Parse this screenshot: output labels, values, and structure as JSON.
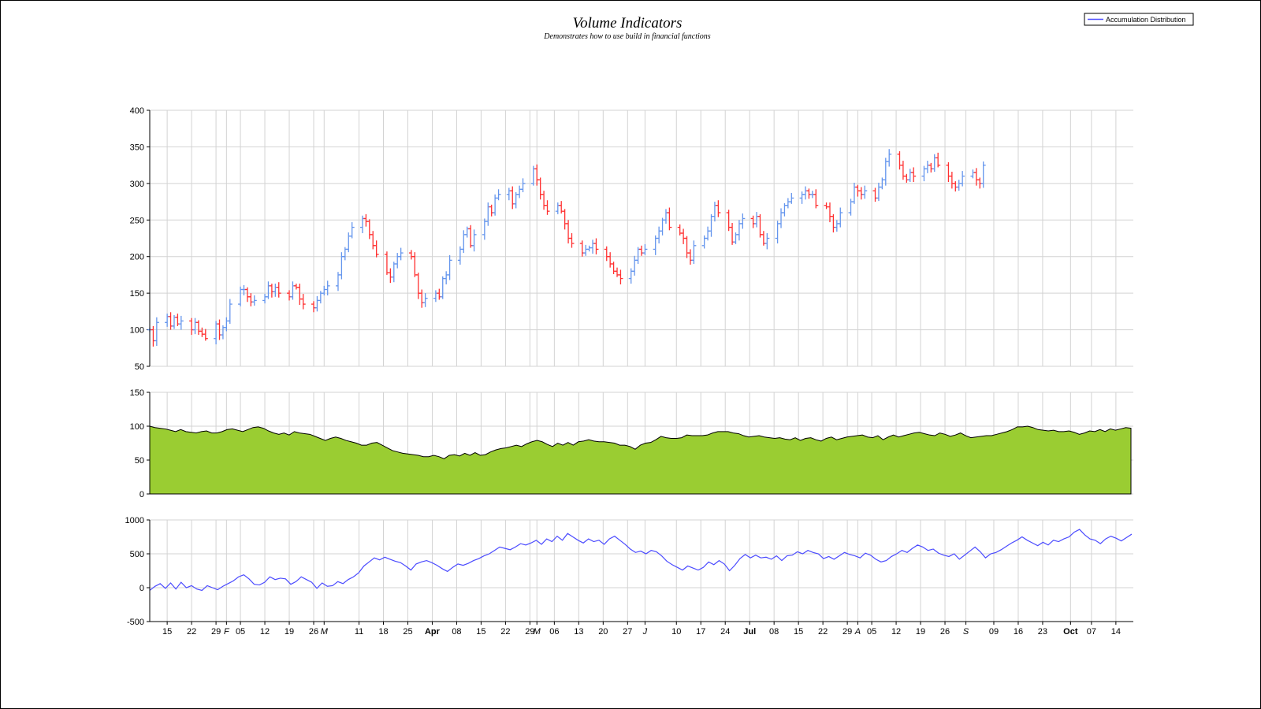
{
  "chart_title": "Volume Indicators",
  "chart_subtitle": "Demonstrates how to use build in financial functions",
  "legend": {
    "placement": "top-right",
    "entries": [
      "Accumulation Distribution"
    ]
  },
  "colors": {
    "up_bar": "#6495ED",
    "down_bar": "#FF3030",
    "volume_fill": "#9ACD32",
    "volume_line": "#000000",
    "accum_line": "#4B4BFF",
    "grid": "#D3D3D3",
    "border": "#000000"
  },
  "chart_data": [
    {
      "type": "line",
      "name": "price-panel",
      "chart_style": "OHLC stock bars",
      "ylim": [
        50,
        400
      ],
      "yticks": [
        "50",
        "100",
        "150",
        "200",
        "250",
        "300",
        "350",
        "400"
      ],
      "close_series_start": "2001-01-10",
      "close_values": [
        100,
        85,
        110,
        118,
        105,
        117,
        108,
        112,
        100,
        110,
        98,
        94,
        88,
        108,
        93,
        103,
        112,
        135,
        155,
        155,
        145,
        138,
        140,
        145,
        160,
        152,
        158,
        150,
        145,
        160,
        158,
        142,
        135,
        130,
        140,
        150,
        155,
        160,
        175,
        200,
        210,
        228,
        240,
        252,
        248,
        230,
        215,
        203,
        178,
        172,
        190,
        200,
        205,
        200,
        175,
        150,
        137,
        143,
        150,
        145,
        170,
        175,
        195,
        210,
        230,
        238,
        215,
        230,
        248,
        268,
        260,
        280,
        285,
        290,
        272,
        285,
        292,
        300,
        320,
        305,
        285,
        270,
        262,
        270,
        262,
        245,
        225,
        218,
        205,
        210,
        212,
        218,
        210,
        200,
        190,
        180,
        175,
        170,
        180,
        195,
        210,
        205,
        210,
        225,
        235,
        250,
        260,
        240,
        232,
        225,
        205,
        195,
        215,
        225,
        235,
        255,
        270,
        260,
        240,
        220,
        230,
        245,
        252,
        245,
        255,
        230,
        218,
        225,
        245,
        260,
        270,
        275,
        280,
        285,
        290,
        285,
        285,
        270,
        268,
        255,
        240,
        245,
        260,
        275,
        295,
        290,
        285,
        290,
        280,
        295,
        305,
        330,
        340,
        325,
        310,
        305,
        315,
        310,
        320,
        325,
        320,
        335,
        325,
        310,
        300,
        295,
        300,
        310,
        315,
        305,
        300,
        325
      ]
    },
    {
      "type": "area",
      "name": "volume-panel",
      "ylim": [
        0,
        150
      ],
      "yticks": [
        "0",
        "50",
        "100",
        "150"
      ],
      "values": [
        100,
        98,
        97,
        96,
        94,
        92,
        95,
        92,
        91,
        90,
        92,
        93,
        90,
        90,
        92,
        95,
        96,
        94,
        92,
        95,
        98,
        99,
        97,
        93,
        90,
        88,
        90,
        87,
        92,
        90,
        89,
        88,
        85,
        82,
        79,
        82,
        84,
        82,
        79,
        77,
        75,
        72,
        72,
        75,
        76,
        72,
        68,
        64,
        62,
        60,
        59,
        58,
        57,
        55,
        55,
        57,
        55,
        52,
        57,
        58,
        56,
        60,
        57,
        61,
        57,
        58,
        62,
        65,
        67,
        68,
        70,
        72,
        70,
        74,
        77,
        79,
        77,
        73,
        70,
        75,
        72,
        76,
        72,
        77,
        78,
        80,
        78,
        77,
        77,
        76,
        75,
        72,
        72,
        70,
        66,
        72,
        75,
        76,
        80,
        85,
        83,
        82,
        82,
        83,
        87,
        86,
        86,
        86,
        87,
        90,
        92,
        92,
        92,
        90,
        89,
        86,
        84,
        85,
        86,
        84,
        83,
        82,
        83,
        81,
        80,
        83,
        79,
        82,
        83,
        80,
        78,
        82,
        84,
        80,
        82,
        84,
        85,
        86,
        87,
        84,
        83,
        86,
        80,
        84,
        87,
        84,
        86,
        88,
        90,
        91,
        89,
        87,
        86,
        90,
        88,
        85,
        87,
        90,
        86,
        83,
        84,
        85,
        86,
        86,
        88,
        90,
        92,
        95,
        99,
        99,
        100,
        98,
        95,
        94,
        93,
        94,
        92,
        92,
        93,
        91,
        88,
        90,
        93,
        92,
        95,
        92,
        96,
        94,
        96,
        98,
        97
      ]
    },
    {
      "type": "line",
      "name": "accumulation-panel",
      "ylim": [
        -500,
        1000
      ],
      "yticks": [
        "-500",
        "0",
        "500",
        "1000"
      ],
      "series": [
        {
          "name": "Accumulation Distribution"
        }
      ],
      "values": [
        -40,
        20,
        60,
        -10,
        70,
        -20,
        80,
        0,
        30,
        -20,
        -40,
        30,
        0,
        -30,
        20,
        60,
        100,
        160,
        190,
        130,
        50,
        40,
        80,
        160,
        120,
        140,
        130,
        50,
        90,
        160,
        120,
        80,
        -10,
        70,
        20,
        30,
        90,
        60,
        120,
        160,
        220,
        320,
        380,
        440,
        410,
        450,
        420,
        390,
        370,
        320,
        260,
        350,
        380,
        400,
        370,
        330,
        280,
        240,
        300,
        350,
        330,
        360,
        400,
        430,
        470,
        500,
        550,
        600,
        580,
        560,
        600,
        650,
        630,
        660,
        700,
        640,
        720,
        680,
        760,
        700,
        800,
        750,
        700,
        660,
        720,
        680,
        700,
        640,
        720,
        760,
        700,
        640,
        570,
        520,
        540,
        500,
        550,
        530,
        470,
        390,
        340,
        300,
        260,
        320,
        290,
        260,
        300,
        380,
        340,
        400,
        350,
        250,
        330,
        430,
        490,
        440,
        480,
        440,
        450,
        420,
        470,
        400,
        470,
        480,
        530,
        500,
        550,
        520,
        500,
        430,
        460,
        420,
        470,
        520,
        490,
        470,
        440,
        510,
        480,
        420,
        380,
        400,
        460,
        500,
        550,
        520,
        580,
        630,
        600,
        550,
        570,
        510,
        480,
        460,
        500,
        420,
        480,
        540,
        600,
        530,
        440,
        500,
        520,
        560,
        610,
        660,
        700,
        750,
        700,
        660,
        620,
        670,
        630,
        700,
        680,
        720,
        750,
        820,
        860,
        780,
        720,
        700,
        650,
        720,
        760,
        730,
        690,
        740,
        790
      ]
    },
    {
      "type": "line",
      "name": "shared-date-axis",
      "x_tick_labels": [
        {
          "date": "2001-01-15",
          "label": "15"
        },
        {
          "date": "2001-01-22",
          "label": "22"
        },
        {
          "date": "2001-01-29",
          "label": "29"
        },
        {
          "date": "2001-02-01",
          "label": "F"
        },
        {
          "date": "2001-02-05",
          "label": "05"
        },
        {
          "date": "2001-02-12",
          "label": "12"
        },
        {
          "date": "2001-02-19",
          "label": "19"
        },
        {
          "date": "2001-02-26",
          "label": "26"
        },
        {
          "date": "2001-03-01",
          "label": "M"
        },
        {
          "date": "2001-03-11",
          "label": "11"
        },
        {
          "date": "2001-03-18",
          "label": "18"
        },
        {
          "date": "2001-03-25",
          "label": "25"
        },
        {
          "date": "2001-04-01",
          "label": "Apr"
        },
        {
          "date": "2001-04-08",
          "label": "08"
        },
        {
          "date": "2001-04-15",
          "label": "15"
        },
        {
          "date": "2001-04-22",
          "label": "22"
        },
        {
          "date": "2001-04-29",
          "label": "29"
        },
        {
          "date": "2001-05-01",
          "label": "M"
        },
        {
          "date": "2001-05-06",
          "label": "06"
        },
        {
          "date": "2001-05-13",
          "label": "13"
        },
        {
          "date": "2001-05-20",
          "label": "20"
        },
        {
          "date": "2001-05-27",
          "label": "27"
        },
        {
          "date": "2001-06-01",
          "label": "J"
        },
        {
          "date": "2001-06-10",
          "label": "10"
        },
        {
          "date": "2001-06-17",
          "label": "17"
        },
        {
          "date": "2001-06-24",
          "label": "24"
        },
        {
          "date": "2001-07-01",
          "label": "Jul"
        },
        {
          "date": "2001-07-08",
          "label": "08"
        },
        {
          "date": "2001-07-15",
          "label": "15"
        },
        {
          "date": "2001-07-22",
          "label": "22"
        },
        {
          "date": "2001-07-29",
          "label": "29"
        },
        {
          "date": "2001-08-01",
          "label": "A"
        },
        {
          "date": "2001-08-05",
          "label": "05"
        },
        {
          "date": "2001-08-12",
          "label": "12"
        },
        {
          "date": "2001-08-19",
          "label": "19"
        },
        {
          "date": "2001-08-26",
          "label": "26"
        },
        {
          "date": "2001-09-01",
          "label": "S"
        },
        {
          "date": "2001-09-09",
          "label": "09"
        },
        {
          "date": "2001-09-16",
          "label": "16"
        },
        {
          "date": "2001-09-23",
          "label": "23"
        },
        {
          "date": "2001-10-01",
          "label": "Oct"
        },
        {
          "date": "2001-10-07",
          "label": "07"
        },
        {
          "date": "2001-10-14",
          "label": "14"
        }
      ],
      "bold_labels": [
        "Apr",
        "Jul",
        "Oct"
      ],
      "italic_labels": [
        "F",
        "M",
        "J",
        "A",
        "S"
      ],
      "x_range": [
        "2001-01-10",
        "2001-10-19"
      ]
    }
  ]
}
